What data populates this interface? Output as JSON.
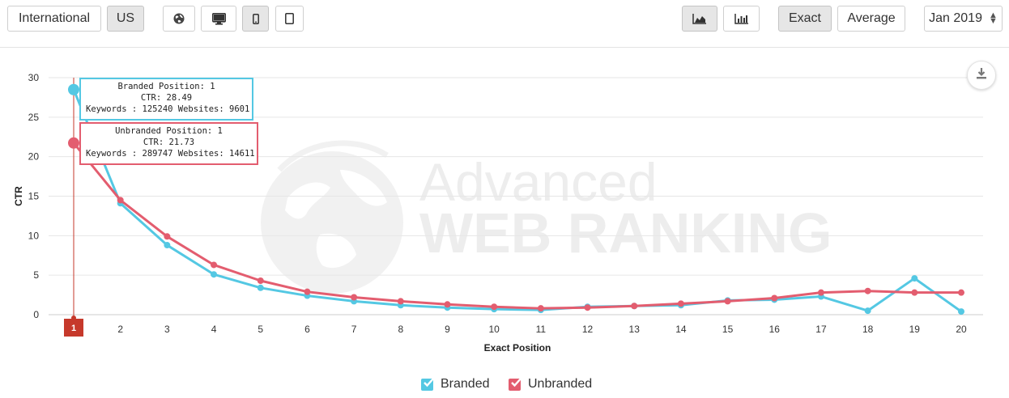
{
  "toolbar": {
    "international_label": "International",
    "us_label": "US",
    "exact_label": "Exact",
    "average_label": "Average",
    "month_label": "Jan 2019"
  },
  "colors": {
    "branded": "#54c8e3",
    "unbranded": "#e35d6f",
    "crosshair": "#c6392b"
  },
  "icons": {
    "globe": "globe-icon",
    "desktop": "desktop-icon",
    "mobile": "mobile-icon",
    "tablet": "tablet-icon",
    "area_chart": "area-chart-icon",
    "bar_chart": "bar-chart-icon",
    "download": "download-icon"
  },
  "chart_data": {
    "type": "line",
    "x": [
      1,
      2,
      3,
      4,
      5,
      6,
      7,
      8,
      9,
      10,
      11,
      12,
      13,
      14,
      15,
      16,
      17,
      18,
      19,
      20
    ],
    "xlabel": "Exact Position",
    "ylabel": "CTR",
    "ylim": [
      0,
      30
    ],
    "yticks": [
      0,
      5,
      10,
      15,
      20,
      25,
      30
    ],
    "grid": true,
    "legend_position": "bottom-center",
    "watermark_line1": "Advanced",
    "watermark_line2": "WEB RANKING",
    "highlighted_x": 1,
    "series": [
      {
        "name": "Branded",
        "values": [
          28.49,
          14.1,
          8.8,
          5.1,
          3.4,
          2.4,
          1.7,
          1.2,
          0.9,
          0.7,
          0.6,
          1.0,
          1.1,
          1.2,
          1.8,
          1.9,
          2.3,
          0.5,
          4.6,
          0.4
        ]
      },
      {
        "name": "Unbranded",
        "values": [
          21.73,
          14.5,
          9.9,
          6.3,
          4.3,
          2.9,
          2.2,
          1.7,
          1.3,
          1.0,
          0.8,
          0.9,
          1.1,
          1.4,
          1.7,
          2.1,
          2.8,
          3.0,
          2.8,
          2.8
        ]
      }
    ]
  },
  "tooltip": {
    "branded_line1": "Branded Position: 1",
    "branded_line2": "CTR: 28.49",
    "branded_line3": "Keywords : 125240 Websites: 9601",
    "unbranded_line1": "Unbranded Position: 1",
    "unbranded_line2": "CTR: 21.73",
    "unbranded_line3": "Keywords : 289747 Websites: 14611"
  },
  "legend": {
    "branded": "Branded",
    "unbranded": "Unbranded"
  }
}
